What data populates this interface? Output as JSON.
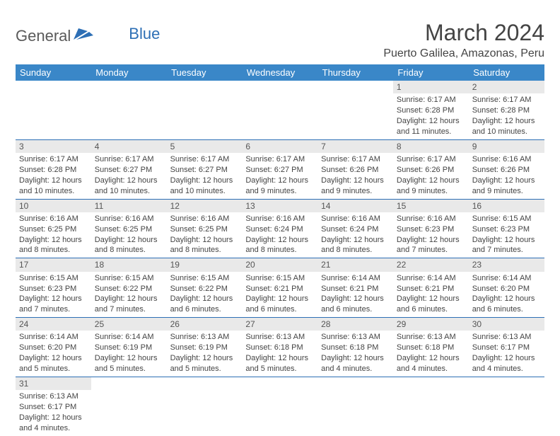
{
  "logo": {
    "word1": "General",
    "word2": "Blue"
  },
  "title": "March 2024",
  "location": "Puerto Galilea, Amazonas, Peru",
  "colors": {
    "header_bg": "#3a87c8",
    "header_text": "#ffffff",
    "row_divider": "#2d6fb5",
    "daynum_bg": "#e9e9e9",
    "text": "#444444",
    "logo_gray": "#5a5a5a",
    "logo_blue": "#2d6fb5"
  },
  "day_labels": [
    "Sunday",
    "Monday",
    "Tuesday",
    "Wednesday",
    "Thursday",
    "Friday",
    "Saturday"
  ],
  "weeks": [
    [
      null,
      null,
      null,
      null,
      null,
      {
        "n": "1",
        "sr": "6:17 AM",
        "ss": "6:28 PM",
        "dl": "12 hours and 11 minutes."
      },
      {
        "n": "2",
        "sr": "6:17 AM",
        "ss": "6:28 PM",
        "dl": "12 hours and 10 minutes."
      }
    ],
    [
      {
        "n": "3",
        "sr": "6:17 AM",
        "ss": "6:28 PM",
        "dl": "12 hours and 10 minutes."
      },
      {
        "n": "4",
        "sr": "6:17 AM",
        "ss": "6:27 PM",
        "dl": "12 hours and 10 minutes."
      },
      {
        "n": "5",
        "sr": "6:17 AM",
        "ss": "6:27 PM",
        "dl": "12 hours and 10 minutes."
      },
      {
        "n": "6",
        "sr": "6:17 AM",
        "ss": "6:27 PM",
        "dl": "12 hours and 9 minutes."
      },
      {
        "n": "7",
        "sr": "6:17 AM",
        "ss": "6:26 PM",
        "dl": "12 hours and 9 minutes."
      },
      {
        "n": "8",
        "sr": "6:17 AM",
        "ss": "6:26 PM",
        "dl": "12 hours and 9 minutes."
      },
      {
        "n": "9",
        "sr": "6:16 AM",
        "ss": "6:26 PM",
        "dl": "12 hours and 9 minutes."
      }
    ],
    [
      {
        "n": "10",
        "sr": "6:16 AM",
        "ss": "6:25 PM",
        "dl": "12 hours and 8 minutes."
      },
      {
        "n": "11",
        "sr": "6:16 AM",
        "ss": "6:25 PM",
        "dl": "12 hours and 8 minutes."
      },
      {
        "n": "12",
        "sr": "6:16 AM",
        "ss": "6:25 PM",
        "dl": "12 hours and 8 minutes."
      },
      {
        "n": "13",
        "sr": "6:16 AM",
        "ss": "6:24 PM",
        "dl": "12 hours and 8 minutes."
      },
      {
        "n": "14",
        "sr": "6:16 AM",
        "ss": "6:24 PM",
        "dl": "12 hours and 8 minutes."
      },
      {
        "n": "15",
        "sr": "6:16 AM",
        "ss": "6:23 PM",
        "dl": "12 hours and 7 minutes."
      },
      {
        "n": "16",
        "sr": "6:15 AM",
        "ss": "6:23 PM",
        "dl": "12 hours and 7 minutes."
      }
    ],
    [
      {
        "n": "17",
        "sr": "6:15 AM",
        "ss": "6:23 PM",
        "dl": "12 hours and 7 minutes."
      },
      {
        "n": "18",
        "sr": "6:15 AM",
        "ss": "6:22 PM",
        "dl": "12 hours and 7 minutes."
      },
      {
        "n": "19",
        "sr": "6:15 AM",
        "ss": "6:22 PM",
        "dl": "12 hours and 6 minutes."
      },
      {
        "n": "20",
        "sr": "6:15 AM",
        "ss": "6:21 PM",
        "dl": "12 hours and 6 minutes."
      },
      {
        "n": "21",
        "sr": "6:14 AM",
        "ss": "6:21 PM",
        "dl": "12 hours and 6 minutes."
      },
      {
        "n": "22",
        "sr": "6:14 AM",
        "ss": "6:21 PM",
        "dl": "12 hours and 6 minutes."
      },
      {
        "n": "23",
        "sr": "6:14 AM",
        "ss": "6:20 PM",
        "dl": "12 hours and 6 minutes."
      }
    ],
    [
      {
        "n": "24",
        "sr": "6:14 AM",
        "ss": "6:20 PM",
        "dl": "12 hours and 5 minutes."
      },
      {
        "n": "25",
        "sr": "6:14 AM",
        "ss": "6:19 PM",
        "dl": "12 hours and 5 minutes."
      },
      {
        "n": "26",
        "sr": "6:13 AM",
        "ss": "6:19 PM",
        "dl": "12 hours and 5 minutes."
      },
      {
        "n": "27",
        "sr": "6:13 AM",
        "ss": "6:18 PM",
        "dl": "12 hours and 5 minutes."
      },
      {
        "n": "28",
        "sr": "6:13 AM",
        "ss": "6:18 PM",
        "dl": "12 hours and 4 minutes."
      },
      {
        "n": "29",
        "sr": "6:13 AM",
        "ss": "6:18 PM",
        "dl": "12 hours and 4 minutes."
      },
      {
        "n": "30",
        "sr": "6:13 AM",
        "ss": "6:17 PM",
        "dl": "12 hours and 4 minutes."
      }
    ],
    [
      {
        "n": "31",
        "sr": "6:13 AM",
        "ss": "6:17 PM",
        "dl": "12 hours and 4 minutes."
      },
      null,
      null,
      null,
      null,
      null,
      null
    ]
  ],
  "labels": {
    "sunrise": "Sunrise: ",
    "sunset": "Sunset: ",
    "daylight": "Daylight: "
  }
}
